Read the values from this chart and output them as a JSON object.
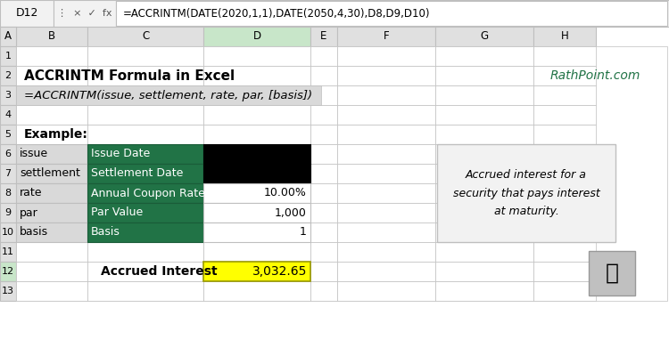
{
  "title": "ACCRINTM Formula in Excel",
  "website": "RathPoint.com",
  "formula": "=ACCRINTM(issue, settlement, rate, par, [basis])",
  "formula_bar_text": "=ACCRINTM(DATE(2020,1,1),DATE(2050,4,30),D8,D9,D10)",
  "cell_ref": "D12",
  "example_label": "Example:",
  "rows": [
    {
      "label": "issue",
      "desc": "Issue Date",
      "value": "",
      "row": 6
    },
    {
      "label": "settlement",
      "desc": "Settlement Date",
      "value": "",
      "row": 7
    },
    {
      "label": "rate",
      "desc": "Annual Coupon Rate",
      "value": "10.00%",
      "row": 8
    },
    {
      "label": "par",
      "desc": "Par Value",
      "value": "1,000",
      "row": 9
    },
    {
      "label": "basis",
      "desc": "Basis",
      "value": "1",
      "row": 10
    }
  ],
  "result_label": "Accrued Interest",
  "result_value": "3,032.65",
  "green_color": "#217346",
  "black_color": "#000000",
  "yellow_color": "#FFFF00",
  "label_bg": "#D9D9D9",
  "formula_bg": "#D9D9D9",
  "sidebar_bg": "#F2F2F2",
  "header_bg": "#D9D9D9",
  "grid_line_color": "#BFBFBF",
  "website_color": "#217346",
  "col_header_bg": "#E0E0E0",
  "row_header_bg": "#E0E0E0",
  "formula_bar_bg": "#FFFFFF",
  "top_bar_bg": "#F2F2F2",
  "bg_color": "#FFFFFF"
}
